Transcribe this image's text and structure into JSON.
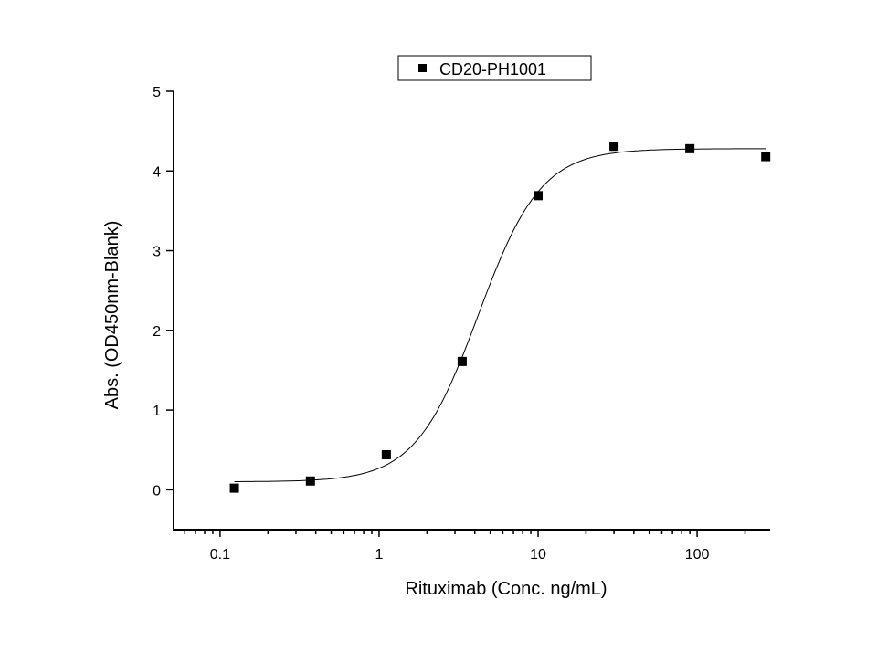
{
  "chart_data": {
    "type": "scatter",
    "title": "",
    "xlabel": "Rituximab (Conc. ng/mL)",
    "ylabel": "Abs. (OD450nm-Blank)",
    "xscale": "log",
    "xlim": [
      0.051,
      284
    ],
    "ylim": [
      -0.5,
      5
    ],
    "xticks": [
      0.1,
      1,
      10,
      100
    ],
    "xtick_labels": [
      "0.1",
      "1",
      "10",
      "100"
    ],
    "yticks": [
      0,
      1,
      2,
      3,
      4,
      5
    ],
    "ytick_labels": [
      "0",
      "1",
      "2",
      "3",
      "4",
      "5"
    ],
    "grid": false,
    "legend": {
      "position": "top-center",
      "entries": [
        "CD20-PH1001"
      ]
    },
    "series": [
      {
        "name": "CD20-PH1001",
        "marker": "square",
        "color": "#000000",
        "x": [
          0.123,
          0.37,
          1.11,
          3.33,
          10,
          30,
          90,
          270
        ],
        "y": [
          0.02,
          0.11,
          0.44,
          1.61,
          3.69,
          4.31,
          4.28,
          4.18
        ]
      }
    ],
    "fit": {
      "model": "4PL",
      "bottom": 0.1,
      "top": 4.28,
      "ec50": 4.2,
      "hill": 2.2,
      "x_range": [
        0.123,
        270
      ]
    }
  }
}
